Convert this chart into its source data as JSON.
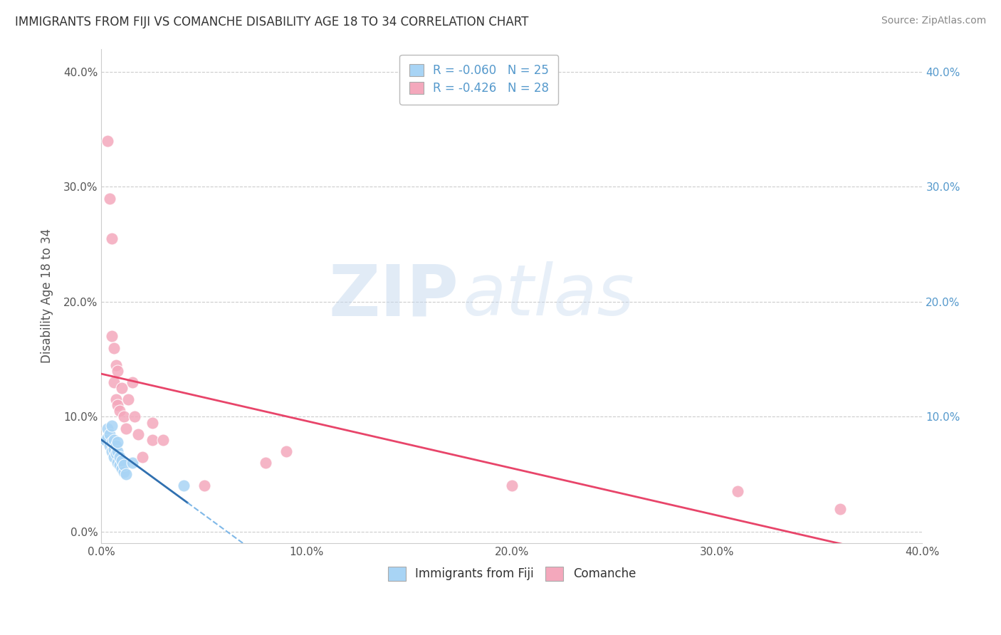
{
  "title": "IMMIGRANTS FROM FIJI VS COMANCHE DISABILITY AGE 18 TO 34 CORRELATION CHART",
  "source": "Source: ZipAtlas.com",
  "ylabel": "Disability Age 18 to 34",
  "legend_labels": [
    "Immigrants from Fiji",
    "Comanche"
  ],
  "legend_R": [
    -0.06,
    -0.426
  ],
  "legend_N": [
    25,
    28
  ],
  "xlim": [
    0.0,
    0.4
  ],
  "ylim": [
    -0.01,
    0.42
  ],
  "xticks": [
    0.0,
    0.1,
    0.2,
    0.3,
    0.4
  ],
  "yticks": [
    0.0,
    0.1,
    0.2,
    0.3,
    0.4
  ],
  "yticks_right": [
    0.1,
    0.2,
    0.3,
    0.4
  ],
  "color_blue": "#A8D4F5",
  "color_pink": "#F4A8BC",
  "line_blue_solid": "#3070B0",
  "line_blue_dash": "#7FB8E8",
  "line_pink": "#E8456A",
  "watermark_zip": "ZIP",
  "watermark_atlas": "atlas",
  "blue_x": [
    0.002,
    0.003,
    0.003,
    0.004,
    0.004,
    0.005,
    0.005,
    0.005,
    0.006,
    0.006,
    0.006,
    0.007,
    0.007,
    0.008,
    0.008,
    0.008,
    0.009,
    0.009,
    0.01,
    0.01,
    0.011,
    0.011,
    0.012,
    0.015,
    0.04
  ],
  "blue_y": [
    0.08,
    0.082,
    0.09,
    0.075,
    0.085,
    0.07,
    0.078,
    0.092,
    0.065,
    0.072,
    0.08,
    0.068,
    0.075,
    0.06,
    0.07,
    0.078,
    0.058,
    0.065,
    0.055,
    0.062,
    0.052,
    0.058,
    0.05,
    0.06,
    0.04
  ],
  "pink_x": [
    0.003,
    0.004,
    0.005,
    0.005,
    0.006,
    0.006,
    0.007,
    0.007,
    0.008,
    0.008,
    0.009,
    0.01,
    0.011,
    0.012,
    0.013,
    0.015,
    0.016,
    0.018,
    0.02,
    0.025,
    0.025,
    0.03,
    0.05,
    0.08,
    0.09,
    0.2,
    0.31,
    0.36
  ],
  "pink_y": [
    0.34,
    0.29,
    0.255,
    0.17,
    0.16,
    0.13,
    0.145,
    0.115,
    0.14,
    0.11,
    0.105,
    0.125,
    0.1,
    0.09,
    0.115,
    0.13,
    0.1,
    0.085,
    0.065,
    0.08,
    0.095,
    0.08,
    0.04,
    0.06,
    0.07,
    0.04,
    0.035,
    0.02
  ]
}
